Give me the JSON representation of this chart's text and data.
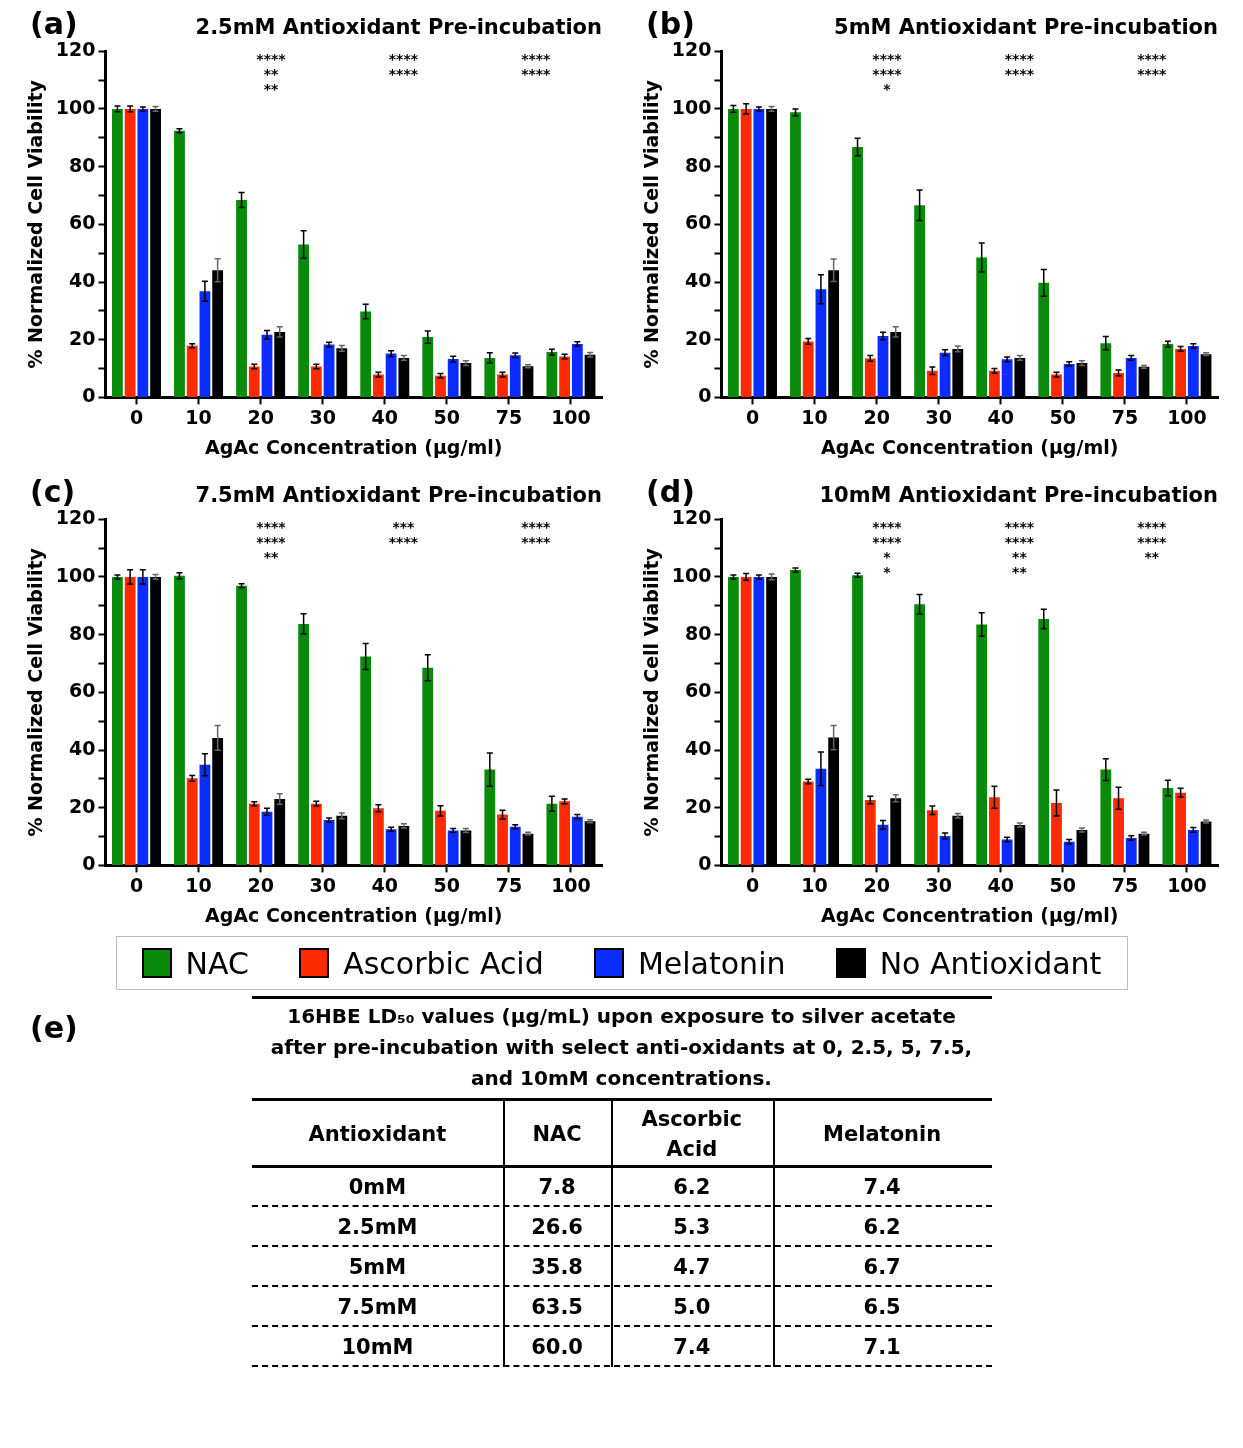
{
  "chart_data": [
    {
      "type": "bar",
      "title": "2.5mM Antioxidant Pre-incubation",
      "xlabel": "AgAc Concentration (μg/ml)",
      "ylabel": "% Normalized Cell Viability",
      "categories": [
        "0",
        "10",
        "20",
        "30",
        "40",
        "50",
        "75",
        "100"
      ],
      "ylim": [
        0,
        120
      ],
      "yticks": [
        0,
        {
          "value": 10,
          "label": null
        },
        20,
        {
          "value": 30,
          "label": null
        },
        40,
        {
          "value": 50,
          "label": null
        },
        60,
        {
          "value": 70,
          "label": null
        },
        80,
        {
          "value": 90,
          "label": null
        },
        100,
        {
          "value": 110,
          "label": null
        },
        120
      ],
      "legend": "bottom",
      "series": [
        {
          "name": "NAC",
          "color": "#0a8a0a",
          "values": [
            100,
            92.4,
            68.4,
            53,
            29.8,
            20.9,
            13.7,
            15.7
          ],
          "errors": [
            1,
            0.7,
            2.6,
            4.8,
            2.5,
            2.1,
            1.8,
            1
          ]
        },
        {
          "name": "Ascorbic Acid",
          "color": "#ff2a00",
          "values": [
            100,
            17.9,
            10.7,
            10.7,
            7.9,
            7.5,
            7.9,
            14.2
          ],
          "errors": [
            1,
            0.7,
            0.8,
            0.8,
            0.8,
            0.8,
            0.8,
            0.8
          ]
        },
        {
          "name": "Melatonin",
          "color": "#0a2cff",
          "values": [
            100,
            36.8,
            21.7,
            18.3,
            15.2,
            13.3,
            14.6,
            18.5
          ],
          "errors": [
            0.7,
            3.5,
            1.5,
            0.8,
            1,
            1,
            0.8,
            0.8
          ]
        },
        {
          "name": "No Antioxidant",
          "color": "#000000",
          "values": [
            100,
            44.1,
            22.7,
            17,
            13.7,
            11.9,
            10.8,
            14.8
          ],
          "errors": [
            0.8,
            4,
            1.8,
            1,
            0.8,
            0.8,
            0.5,
            0.8
          ]
        }
      ],
      "annotations": [
        "(a)",
        "****",
        "****",
        "****",
        "**",
        "****",
        "****",
        "**"
      ]
    },
    {
      "type": "bar",
      "title": "5mM Antioxidant Pre-incubation",
      "xlabel": "AgAc Concentration (μg/ml)",
      "ylabel": "% Normalized Cell Viability",
      "categories": [
        "0",
        "10",
        "20",
        "30",
        "40",
        "50",
        "75",
        "100"
      ],
      "ylim": [
        0,
        120
      ],
      "yticks": [
        0,
        {
          "value": 10,
          "label": null
        },
        20,
        {
          "value": 30,
          "label": null
        },
        40,
        {
          "value": 50,
          "label": null
        },
        60,
        {
          "value": 70,
          "label": null
        },
        80,
        {
          "value": 90,
          "label": null
        },
        100,
        {
          "value": 110,
          "label": null
        },
        120
      ],
      "series": [
        {
          "name": "NAC",
          "color": "#0a8a0a",
          "values": [
            100,
            98.8,
            86.8,
            66.6,
            48.5,
            39.7,
            18.8,
            18.5
          ],
          "errors": [
            1.2,
            1.2,
            3,
            5.3,
            5,
            4.6,
            2.3,
            1
          ]
        },
        {
          "name": "Ascorbic Acid",
          "color": "#ff2a00",
          "values": [
            100,
            19.4,
            13.5,
            9.2,
            9.2,
            7.9,
            8.5,
            16.8
          ],
          "errors": [
            1.8,
            1,
            1,
            1.3,
            0.8,
            0.8,
            1,
            0.8
          ]
        },
        {
          "name": "Melatonin",
          "color": "#0a2cff",
          "values": [
            100,
            37.5,
            21.3,
            15.5,
            13.2,
            11.6,
            13.7,
            17.8
          ],
          "errors": [
            0.7,
            5,
            1.3,
            1,
            0.8,
            0.8,
            0.8,
            0.8
          ]
        },
        {
          "name": "No Antioxidant",
          "color": "#000000",
          "values": [
            100,
            44.1,
            22.7,
            16.8,
            13.7,
            11.9,
            10.6,
            15
          ],
          "errors": [
            0.8,
            3.9,
            1.8,
            1,
            0.8,
            0.8,
            0.5,
            0.5
          ]
        }
      ],
      "annotations": [
        "(b)",
        "****",
        "****",
        "****",
        "****",
        "****",
        "****",
        "*"
      ]
    },
    {
      "type": "bar",
      "title": "7.5mM Antioxidant Pre-incubation",
      "xlabel": "AgAc Concentration (μg/ml)",
      "ylabel": "% Normalized Cell Viability",
      "categories": [
        "0",
        "10",
        "20",
        "30",
        "40",
        "50",
        "75",
        "100"
      ],
      "ylim": [
        0,
        120
      ],
      "yticks": [
        0,
        {
          "value": 10,
          "label": null
        },
        20,
        {
          "value": 30,
          "label": null
        },
        40,
        {
          "value": 50,
          "label": null
        },
        60,
        {
          "value": 70,
          "label": null
        },
        80,
        {
          "value": 90,
          "label": null
        },
        100,
        {
          "value": 110,
          "label": null
        },
        120
      ],
      "series": [
        {
          "name": "NAC",
          "color": "#0a8a0a",
          "values": [
            100,
            100.4,
            96.9,
            83.7,
            72.4,
            68.5,
            33.2,
            21.4
          ],
          "errors": [
            0.7,
            1,
            0.7,
            3.5,
            4.5,
            4.5,
            5.8,
            2.6
          ]
        },
        {
          "name": "Ascorbic Acid",
          "color": "#ff2a00",
          "values": [
            100,
            30.2,
            21.4,
            21.4,
            19.8,
            18.9,
            17.6,
            22.2
          ],
          "errors": [
            2.5,
            1,
            0.7,
            0.8,
            1.2,
            1.8,
            1.5,
            0.8
          ]
        },
        {
          "name": "Melatonin",
          "color": "#0a2cff",
          "values": [
            100,
            34.9,
            18.6,
            15.7,
            12.5,
            12.1,
            13.4,
            16.9
          ],
          "errors": [
            2.5,
            3.8,
            1.2,
            0.7,
            0.7,
            0.7,
            0.7,
            0.7
          ]
        },
        {
          "name": "No Antioxidant",
          "color": "#000000",
          "values": [
            100,
            44.2,
            23,
            17.2,
            13.7,
            12.1,
            11,
            15.3
          ],
          "errors": [
            0.8,
            4.3,
            1.8,
            1,
            0.7,
            0.7,
            0.5,
            0.5
          ]
        }
      ],
      "annotations": [
        "(c)",
        "****",
        "***",
        "****",
        "****",
        "****",
        "****",
        "**"
      ]
    },
    {
      "type": "bar",
      "title": "10mM Antioxidant Pre-incubation",
      "xlabel": "AgAc Concentration (μg/ml)",
      "ylabel": "% Normalized Cell Viability",
      "categories": [
        "0",
        "10",
        "20",
        "30",
        "40",
        "50",
        "75",
        "100"
      ],
      "ylim": [
        0,
        120
      ],
      "yticks": [
        0,
        {
          "value": 10,
          "label": null
        },
        20,
        {
          "value": 30,
          "label": null
        },
        40,
        {
          "value": 50,
          "label": null
        },
        60,
        {
          "value": 70,
          "label": null
        },
        80,
        {
          "value": 90,
          "label": null
        },
        100,
        {
          "value": 110,
          "label": null
        },
        120
      ],
      "series": [
        {
          "name": "NAC",
          "color": "#0a8a0a",
          "values": [
            100,
            102.4,
            100.6,
            90.5,
            83.5,
            85.4,
            33.2,
            26.8
          ],
          "errors": [
            0.7,
            0.7,
            0.7,
            3.4,
            4.1,
            3.4,
            3.8,
            2.7
          ]
        },
        {
          "name": "Ascorbic Acid",
          "color": "#ff2a00",
          "values": [
            100,
            29.1,
            22.7,
            19.1,
            23.6,
            21.6,
            23.3,
            25.2
          ],
          "errors": [
            1.2,
            0.8,
            1.3,
            1.5,
            3.8,
            4.5,
            3.8,
            1.5
          ]
        },
        {
          "name": "Melatonin",
          "color": "#0a2cff",
          "values": [
            100,
            33.5,
            14.1,
            10.2,
            9,
            8.2,
            9.5,
            12.3
          ],
          "errors": [
            0.7,
            5.8,
            1.5,
            1,
            0.8,
            0.8,
            0.8,
            0.8
          ]
        },
        {
          "name": "No Antioxidant",
          "color": "#000000",
          "values": [
            100,
            44.3,
            23.3,
            17.2,
            14,
            12.3,
            11,
            15.2
          ],
          "errors": [
            1,
            4.2,
            1.2,
            0.8,
            0.7,
            0.7,
            0.5,
            0.5
          ]
        }
      ],
      "annotations": [
        "(d)",
        "****",
        "****",
        "****",
        "****",
        "****",
        "****",
        "*",
        "**",
        "**",
        "*",
        "**"
      ]
    },
    {
      "type": "heatmap",
      "title": "16HBE LD₅₀ values (μg/mL) upon exposure to silver acetate after pre-incubation with select anti-oxidants at 0, 2.5, 5, 7.5, and 10mM concentrations.",
      "ylabel": "Antioxidant",
      "categories": [
        "NAC",
        "Ascorbic Acid",
        "Melatonin"
      ],
      "y_categories": [
        "0mM",
        "2.5mM",
        "5mM",
        "7.5mM",
        "10mM"
      ],
      "cells": [
        [
          7.8,
          6.2,
          7.4
        ],
        [
          26.6,
          5.3,
          6.2
        ],
        [
          35.8,
          4.7,
          6.7
        ],
        [
          63.5,
          5.0,
          6.5
        ],
        [
          60.0,
          7.4,
          7.1
        ]
      ],
      "cell_labels": [
        [
          "7.8",
          "6.2",
          "7.4"
        ],
        [
          "26.6",
          "5.3",
          "6.2"
        ],
        [
          "35.8",
          "4.7",
          "6.7"
        ],
        [
          "63.5",
          "5.0",
          "6.5"
        ],
        [
          "60.0",
          "7.4",
          "7.1"
        ]
      ],
      "annotations": [
        "(e)"
      ]
    }
  ]
}
